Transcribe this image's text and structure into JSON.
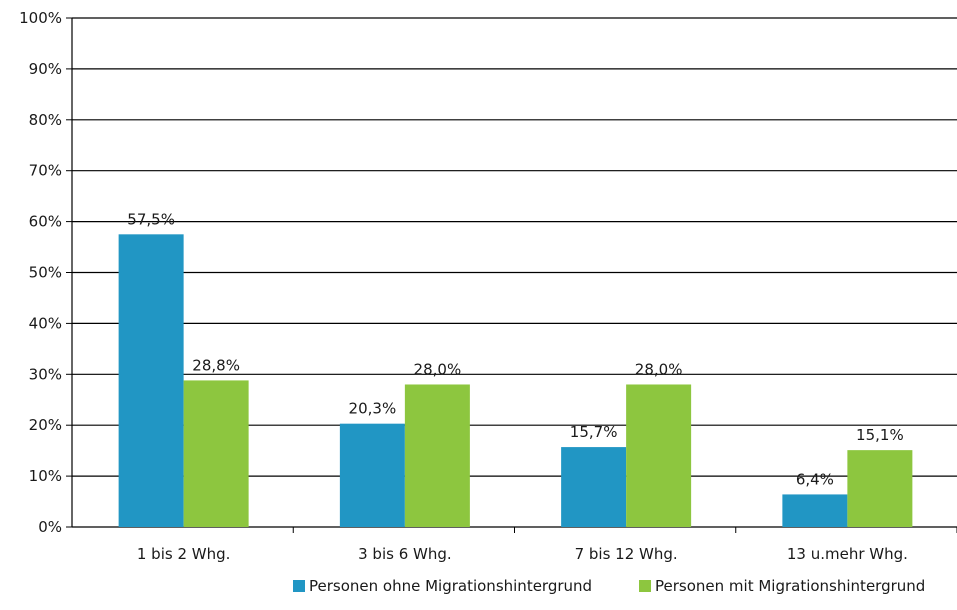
{
  "chart_data": {
    "type": "bar",
    "categories": [
      "1 bis 2 Whg.",
      "3 bis 6 Whg.",
      "7 bis 12 Whg.",
      "13 u.mehr Whg."
    ],
    "series": [
      {
        "name": "Personen ohne Migrationshintergrund",
        "color": "#2196c4",
        "values": [
          57.5,
          20.3,
          15.7,
          6.4
        ],
        "labels": [
          "57,5%",
          "20,3%",
          "15,7%",
          "6,4%"
        ]
      },
      {
        "name": "Personen mit Migrationshintergrund",
        "color": "#8dc63f",
        "values": [
          28.8,
          28.0,
          28.0,
          15.1
        ],
        "labels": [
          "28,8%",
          "28,0%",
          "28,0%",
          "15,1%"
        ]
      }
    ],
    "ylim": [
      0,
      100
    ],
    "yticks": [
      0,
      10,
      20,
      30,
      40,
      50,
      60,
      70,
      80,
      90,
      100
    ],
    "ytick_labels": [
      "0%",
      "10%",
      "20%",
      "30%",
      "40%",
      "50%",
      "60%",
      "70%",
      "80%",
      "90%",
      "100%"
    ],
    "grid": true,
    "legend_position": "bottom",
    "title": "",
    "xlabel": "",
    "ylabel": ""
  }
}
